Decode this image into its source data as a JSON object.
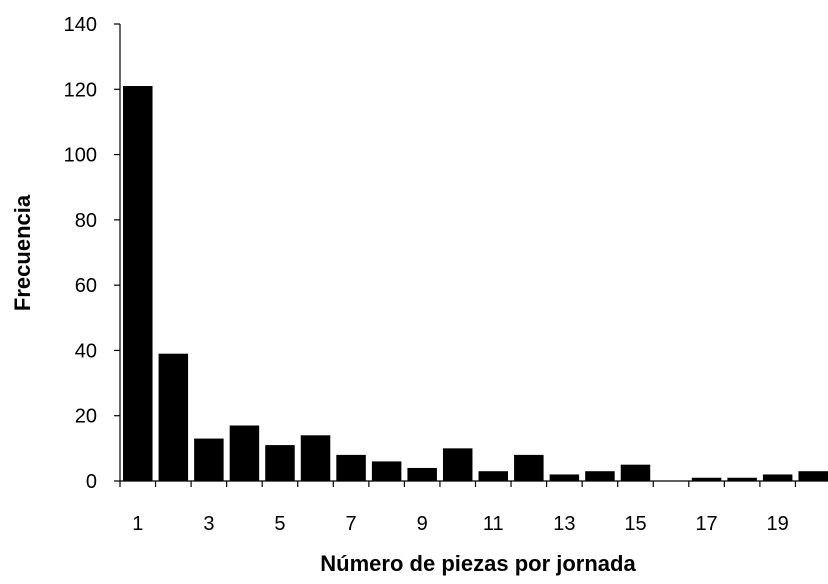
{
  "chart_data": {
    "type": "bar",
    "title": "",
    "xlabel": "Número de piezas por jornada",
    "ylabel": "Frecuencia",
    "categories": [
      1,
      2,
      3,
      4,
      5,
      6,
      7,
      8,
      9,
      10,
      11,
      12,
      13,
      14,
      15,
      16,
      17,
      18,
      19,
      20
    ],
    "x_tick_labels": [
      "1",
      "",
      "3",
      "",
      "5",
      "",
      "7",
      "",
      "9",
      "",
      "11",
      "",
      "13",
      "",
      "15",
      "",
      "17",
      "",
      "19",
      ""
    ],
    "values": [
      121,
      39,
      13,
      17,
      11,
      14,
      8,
      6,
      4,
      10,
      3,
      8,
      2,
      3,
      5,
      0,
      1,
      1,
      2,
      3
    ],
    "ylim": [
      0,
      140
    ],
    "yticks": [
      0,
      20,
      40,
      60,
      80,
      100,
      120,
      140
    ],
    "grid": false,
    "legend": "none",
    "bar_color": "#000000"
  }
}
